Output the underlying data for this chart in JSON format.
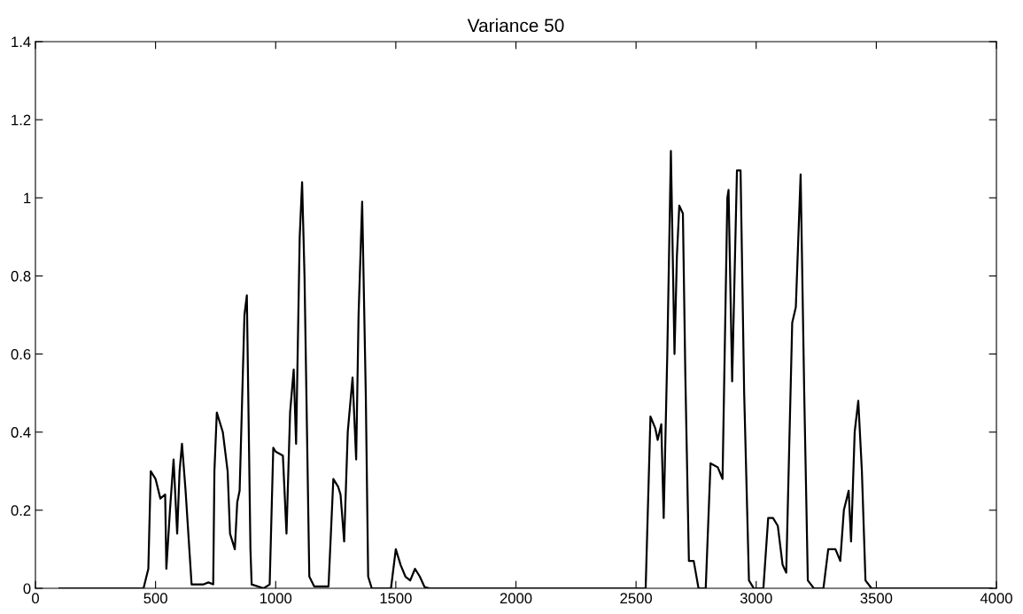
{
  "chart_data": {
    "type": "line",
    "title": "Variance 50",
    "xlim": [
      0,
      4000
    ],
    "ylim": [
      0,
      1.4
    ],
    "xticks": [
      0,
      500,
      1000,
      1500,
      2000,
      2500,
      3000,
      3500,
      4000
    ],
    "yticks": [
      0,
      0.2,
      0.4,
      0.6,
      0.8,
      1,
      1.2,
      1.4
    ],
    "marker": "none",
    "line_style": "solid",
    "series": [
      {
        "color": "#000000",
        "x": [
          100,
          450,
          470,
          480,
          500,
          520,
          540,
          545,
          560,
          575,
          590,
          600,
          610,
          625,
          650,
          700,
          720,
          740,
          745,
          755,
          780,
          800,
          810,
          820,
          830,
          840,
          850,
          870,
          880,
          895,
          900,
          950,
          975,
          990,
          1000,
          1030,
          1045,
          1060,
          1075,
          1085,
          1100,
          1110,
          1120,
          1140,
          1160,
          1220,
          1240,
          1260,
          1270,
          1285,
          1300,
          1320,
          1335,
          1345,
          1360,
          1375,
          1385,
          1400,
          1480,
          1500,
          1520,
          1540,
          1560,
          1580,
          1600,
          1620,
          1640,
          2540,
          2560,
          2580,
          2590,
          2605,
          2615,
          2630,
          2645,
          2660,
          2670,
          2680,
          2695,
          2705,
          2720,
          2740,
          2760,
          2790,
          2810,
          2840,
          2860,
          2880,
          2885,
          2900,
          2920,
          2935,
          2950,
          2970,
          2990,
          3030,
          3050,
          3070,
          3090,
          3110,
          3125,
          3150,
          3165,
          3185,
          3200,
          3215,
          3240,
          3280,
          3300,
          3330,
          3350,
          3365,
          3385,
          3395,
          3410,
          3425,
          3440,
          3455,
          3480,
          3980
        ],
        "values": [
          0,
          0,
          0.05,
          0.3,
          0.28,
          0.23,
          0.24,
          0.05,
          0.2,
          0.33,
          0.14,
          0.3,
          0.37,
          0.25,
          0.01,
          0.01,
          0.015,
          0.01,
          0.3,
          0.45,
          0.4,
          0.3,
          0.14,
          0.12,
          0.1,
          0.22,
          0.25,
          0.7,
          0.75,
          0.1,
          0.01,
          0,
          0.01,
          0.36,
          0.35,
          0.34,
          0.14,
          0.45,
          0.56,
          0.37,
          0.9,
          1.04,
          0.8,
          0.03,
          0.005,
          0.005,
          0.28,
          0.26,
          0.24,
          0.12,
          0.4,
          0.54,
          0.33,
          0.7,
          0.99,
          0.5,
          0.03,
          0,
          0,
          0.1,
          0.06,
          0.03,
          0.02,
          0.05,
          0.03,
          0.003,
          0,
          0,
          0.44,
          0.41,
          0.38,
          0.42,
          0.18,
          0.6,
          1.12,
          0.6,
          0.85,
          0.98,
          0.96,
          0.55,
          0.07,
          0.07,
          0,
          0,
          0.32,
          0.31,
          0.28,
          1,
          1.02,
          0.53,
          1.07,
          1.07,
          0.5,
          0.02,
          0,
          0,
          0.18,
          0.18,
          0.16,
          0.06,
          0.04,
          0.68,
          0.72,
          1.06,
          0.5,
          0.02,
          0,
          0,
          0.1,
          0.1,
          0.07,
          0.2,
          0.25,
          0.12,
          0.4,
          0.48,
          0.3,
          0.02,
          0,
          0
        ]
      }
    ]
  }
}
